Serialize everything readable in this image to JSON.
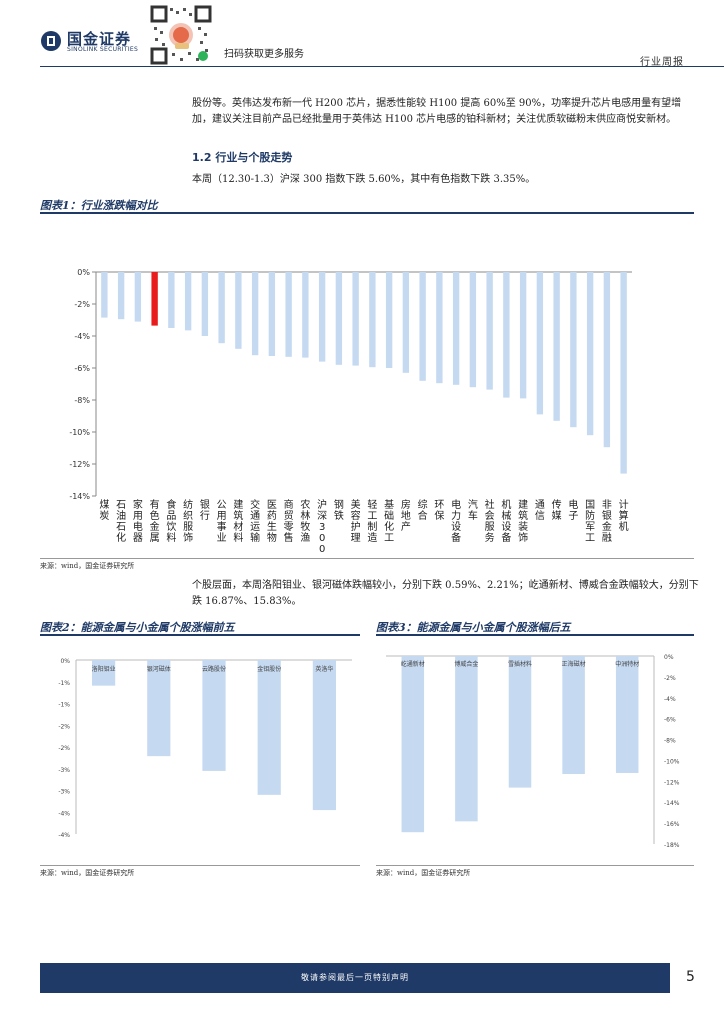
{
  "header": {
    "logo_cn": "国金证券",
    "logo_en": "SINOLINK SECURITIES",
    "qr_caption": "扫码获取更多服务",
    "report_type": "行业周报"
  },
  "body": {
    "para1": "股份等。英伟达发布新一代 H200 芯片，据悉性能较 H100 提高 60%至 90%，功率提升芯片电感用量有望增加，建议关注目前产品已经批量用于英伟达 H100 芯片电感的铂科新材；关注优质软磁粉末供应商悦安新材。",
    "section_title": "1.2 行业与个股走势",
    "para2": "本周（12.30-1.3）沪深 300 指数下跌 5.60%，其中有色指数下跌 3.35%。",
    "para3": "个股层面，本周洛阳钼业、银河磁体跌幅较小，分别下跌 0.59%、2.21%；屹通新材、博威合金跌幅较大，分别下跌 16.87%、15.83%。"
  },
  "figures": {
    "fig1_title": "图表1：行业涨跌幅对比",
    "fig1_source": "来源：wind，国金证券研究所",
    "fig2_title": "图表2：能源金属与小金属个股涨幅前五",
    "fig2_source": "来源：wind，国金证券研究所",
    "fig3_title": "图表3：能源金属与小金属个股涨幅后五",
    "fig3_source": "来源：wind，国金证券研究所"
  },
  "footer": {
    "disclaimer": "敬请参阅最后一页特别声明",
    "page_number": "5"
  },
  "colors": {
    "bar": "#c5d9f1",
    "highlight": "#e81c1c",
    "brand": "#1f3a66"
  },
  "chart_data": [
    {
      "type": "bar",
      "title": "行业涨跌幅对比",
      "categories": [
        "煤炭",
        "石油石化",
        "家用电器",
        "有色金属",
        "食品饮料",
        "纺织服饰",
        "银行",
        "公用事业",
        "建筑材料",
        "交通运输",
        "医药生物",
        "商贸零售",
        "农林牧渔",
        "沪深300",
        "钢铁",
        "美容护理",
        "轻工制造",
        "基础化工",
        "房地产",
        "综合",
        "环保",
        "电力设备",
        "汽车",
        "社会服务",
        "机械设备",
        "建筑装饰",
        "通信",
        "传媒",
        "电子",
        "国防军工",
        "非银金融",
        "计算机"
      ],
      "values": [
        -2.85,
        -2.95,
        -3.1,
        -3.35,
        -3.5,
        -3.65,
        -4.0,
        -4.45,
        -4.8,
        -5.2,
        -5.25,
        -5.3,
        -5.35,
        -5.6,
        -5.8,
        -5.85,
        -5.95,
        -6.0,
        -6.3,
        -6.8,
        -6.95,
        -7.05,
        -7.2,
        -7.35,
        -7.85,
        -7.9,
        -8.9,
        -9.3,
        -9.7,
        -10.2,
        -10.95,
        -12.6
      ],
      "highlight_category": "有色金属",
      "ylim": [
        -14,
        0
      ],
      "yticks": [
        "0%",
        "-2%",
        "-4%",
        "-6%",
        "-8%",
        "-10%",
        "-12%",
        "-14%"
      ],
      "ytick_values": [
        0,
        -2,
        -4,
        -6,
        -8,
        -10,
        -12,
        -14
      ],
      "ylabel": "",
      "xlabel": ""
    },
    {
      "type": "bar",
      "title": "能源金属与小金属个股涨幅前五",
      "categories": [
        "洛阳钼业",
        "银河磁体",
        "云路股份",
        "金钼股份",
        "英洛华"
      ],
      "values": [
        -0.59,
        -2.21,
        -2.55,
        -3.1,
        -3.45
      ],
      "ylim": [
        -4,
        0
      ],
      "yticks": [
        "0%",
        "-1%",
        "-1%",
        "-2%",
        "-2%",
        "-3%",
        "-3%",
        "-4%",
        "-4%"
      ],
      "ytick_values": [
        0,
        -0.5,
        -1,
        -1.5,
        -2,
        -2.5,
        -3,
        -3.5,
        -4
      ]
    },
    {
      "type": "bar",
      "title": "能源金属与小金属个股涨幅后五",
      "categories": [
        "屹通新材",
        "博威合金",
        "雪插材料",
        "正海磁材",
        "中洲特材"
      ],
      "values": [
        -16.87,
        -15.83,
        -12.6,
        -11.3,
        -11.2
      ],
      "ylim": [
        -18,
        0
      ],
      "yticks": [
        "0%",
        "-2%",
        "-4%",
        "-6%",
        "-8%",
        "-10%",
        "-12%",
        "-14%",
        "-16%",
        "-18%"
      ],
      "ytick_values": [
        0,
        -2,
        -4,
        -6,
        -8,
        -10,
        -12,
        -14,
        -16,
        -18
      ]
    }
  ]
}
